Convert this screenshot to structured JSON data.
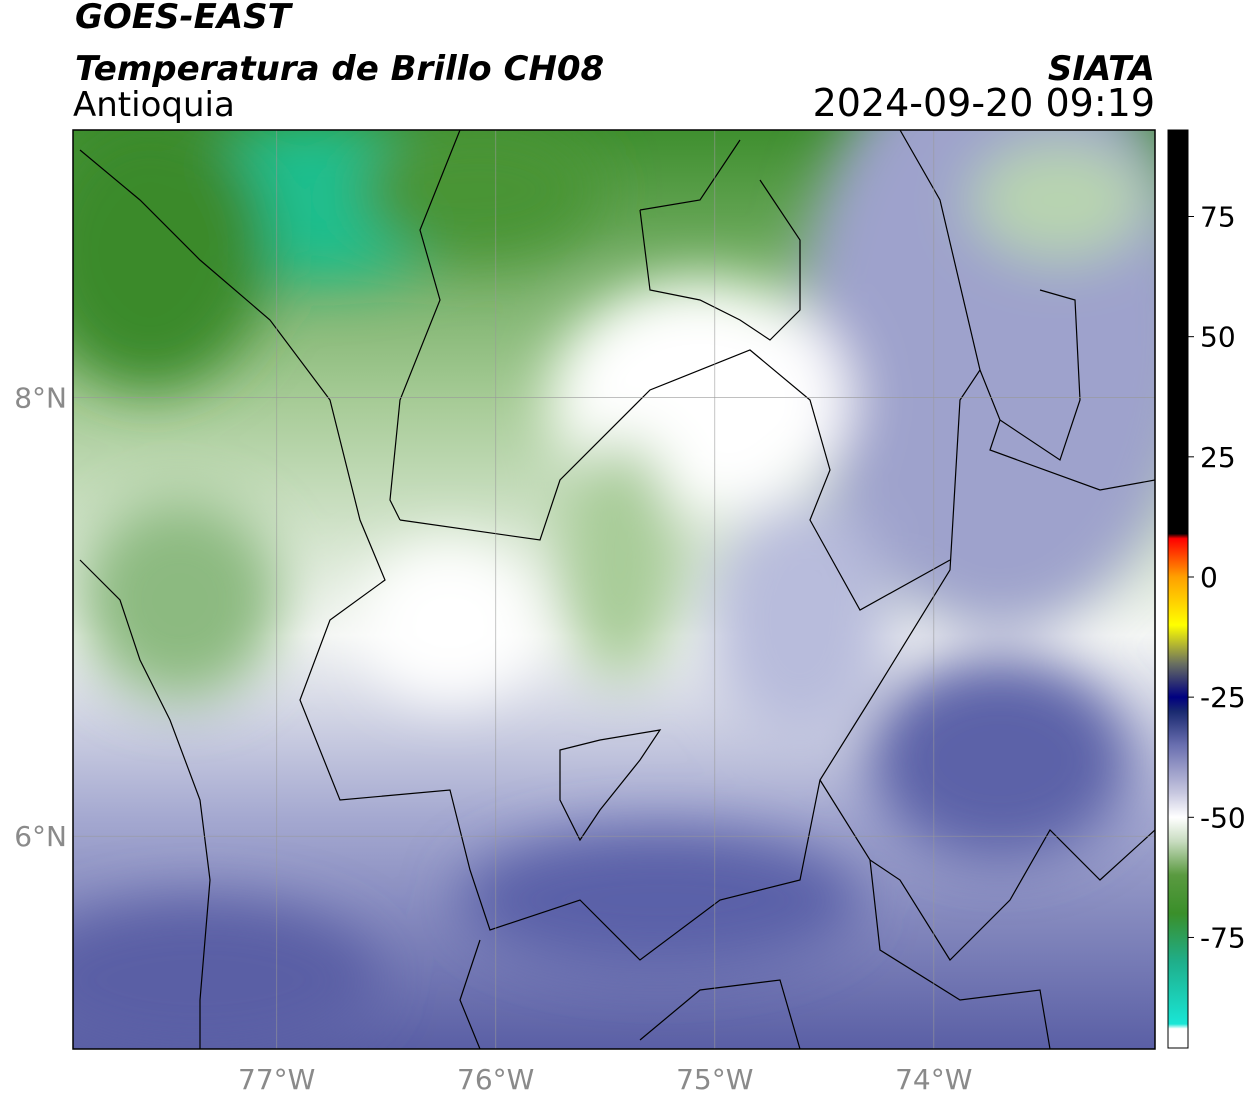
{
  "chart_data": {
    "type": "map",
    "title": "GOES-EAST",
    "subtitle": "Temperatura de Brillo CH08",
    "region": "Antioquia",
    "source": "SIATA",
    "datetime": "2024-09-20 09:19",
    "xlim": [
      -77.93,
      -72.99
    ],
    "ylim": [
      5.03,
      9.22
    ],
    "xticks": [
      {
        "value": -77,
        "label": "77°W"
      },
      {
        "value": -76,
        "label": "76°W"
      },
      {
        "value": -75,
        "label": "75°W"
      },
      {
        "value": -74,
        "label": "74°W"
      }
    ],
    "yticks": [
      {
        "value": 6,
        "label": "6°N"
      },
      {
        "value": 8,
        "label": "8°N"
      }
    ],
    "grid": true,
    "colorbar": {
      "lim": [
        -98,
        93
      ],
      "ticks": [
        75,
        50,
        25,
        0,
        -25,
        -50,
        -75
      ],
      "stops": [
        {
          "value": -98,
          "color": "#ffffff"
        },
        {
          "value": -94,
          "color": "#ffffff"
        },
        {
          "value": -93,
          "color": "#19e6d6"
        },
        {
          "value": -80,
          "color": "#1fae8a"
        },
        {
          "value": -70,
          "color": "#3a8f2a"
        },
        {
          "value": -62,
          "color": "#5a9a40"
        },
        {
          "value": -55,
          "color": "#c8dcc0"
        },
        {
          "value": -50,
          "color": "#ffffff"
        },
        {
          "value": -45,
          "color": "#c8c8e0"
        },
        {
          "value": -35,
          "color": "#6a6fb0"
        },
        {
          "value": -28,
          "color": "#1a2a70"
        },
        {
          "value": -25,
          "color": "#000080"
        },
        {
          "value": -18,
          "color": "#6a7060"
        },
        {
          "value": -10,
          "color": "#ffff00"
        },
        {
          "value": 0,
          "color": "#ffa000"
        },
        {
          "value": 8,
          "color": "#ff0000"
        },
        {
          "value": 9,
          "color": "#000000"
        },
        {
          "value": 93,
          "color": "#000000"
        }
      ]
    }
  }
}
